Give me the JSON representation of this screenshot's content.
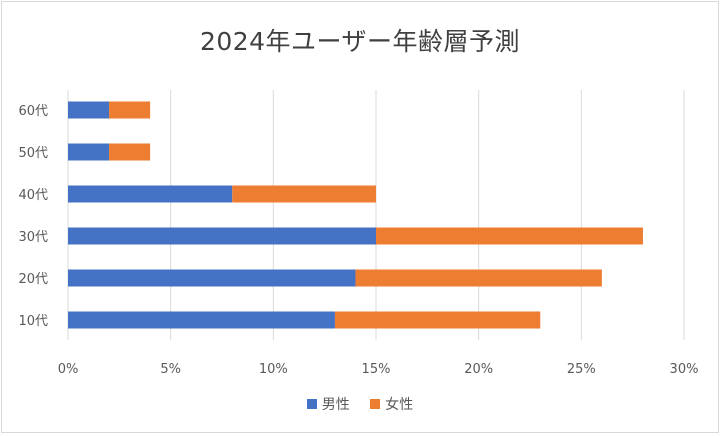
{
  "chart_data": {
    "type": "bar",
    "orientation": "horizontal",
    "stacked": true,
    "title": "2024年ユーザー年齢層予測",
    "categories": [
      "10代",
      "20代",
      "30代",
      "40代",
      "50代",
      "60代"
    ],
    "series": [
      {
        "name": "男性",
        "color": "#4472c4",
        "values": [
          13,
          14,
          15,
          8,
          2,
          2
        ]
      },
      {
        "name": "女性",
        "color": "#ed7d31",
        "values": [
          10,
          12,
          13,
          7,
          2,
          2
        ]
      }
    ],
    "xlim": [
      0,
      30
    ],
    "x_ticks": [
      0,
      5,
      10,
      15,
      20,
      25,
      30
    ],
    "x_tick_labels": [
      "0%",
      "5%",
      "10%",
      "15%",
      "20%",
      "25%",
      "30%"
    ],
    "xlabel": "",
    "ylabel": "",
    "grid": "vertical",
    "legend_position": "bottom",
    "gridline_color": "#d9d9d9"
  }
}
